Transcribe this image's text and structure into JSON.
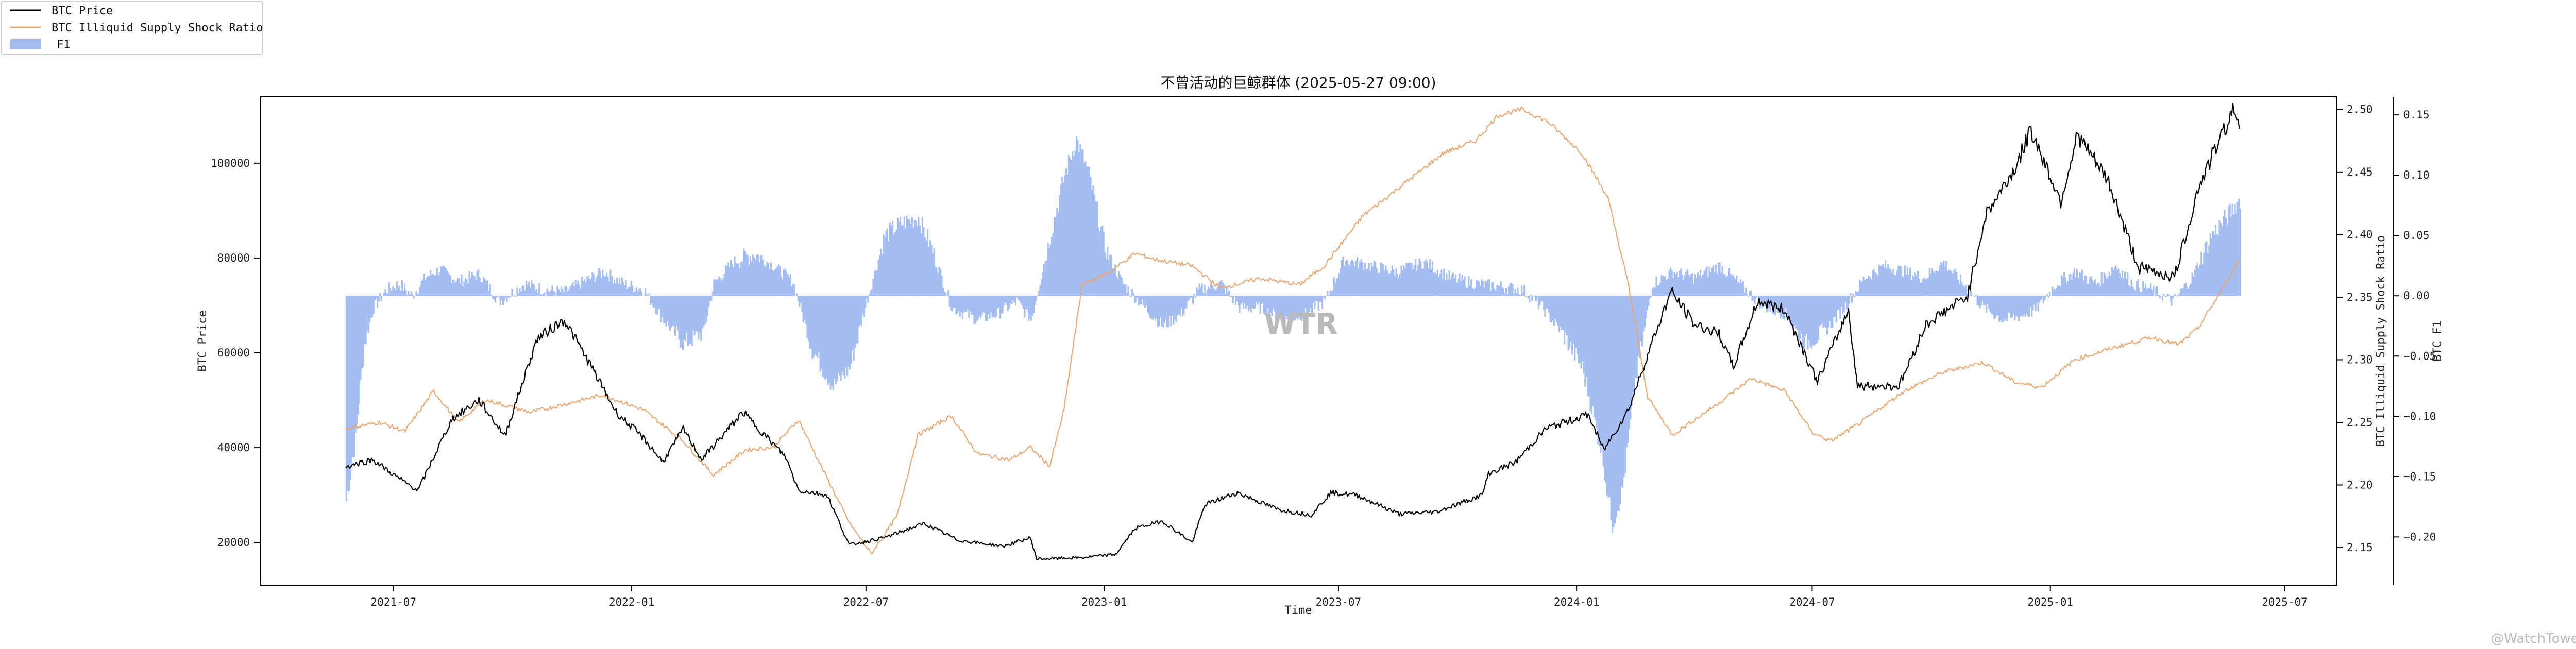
{
  "chart_data": {
    "type": "line",
    "title": "不曾活动的巨鲸群体 (2025-05-27 09:00)",
    "xlabel": "Time",
    "y_labels": {
      "left": "BTC Price",
      "right1": "BTC Illiquid Supply Shock Ratio",
      "right2": "BTC F1"
    },
    "x_range": [
      "2021-03-20",
      "2025-08-10"
    ],
    "x_ticks": [
      "2021-07",
      "2022-01",
      "2022-07",
      "2023-01",
      "2023-07",
      "2024-01",
      "2024-07",
      "2025-01",
      "2025-07"
    ],
    "axes": {
      "price": {
        "range": [
          11000,
          114000
        ],
        "ticks": [
          20000,
          40000,
          60000,
          80000,
          100000
        ]
      },
      "ratio": {
        "range": [
          2.12,
          2.51
        ],
        "ticks": [
          "2.15",
          "2.20",
          "2.25",
          "2.30",
          "2.35",
          "2.40",
          "2.45",
          "2.50"
        ]
      },
      "f1": {
        "range": [
          -0.24,
          0.165
        ],
        "ticks": [
          "−0.20",
          "−0.15",
          "−0.10",
          "−0.05",
          "0.00",
          "0.05",
          "0.10",
          "0.15"
        ]
      }
    },
    "legend": {
      "position": "top-left"
    },
    "grid": false,
    "series": [
      {
        "name": "BTC Price",
        "axis": "price",
        "kind": "line",
        "color": "#000000",
        "points": [
          [
            "2021-05-25",
            36000
          ],
          [
            "2021-06-15",
            37500
          ],
          [
            "2021-07-05",
            33500
          ],
          [
            "2021-07-20",
            31000
          ],
          [
            "2021-08-15",
            46000
          ],
          [
            "2021-09-05",
            50000
          ],
          [
            "2021-09-25",
            42500
          ],
          [
            "2021-10-20",
            63000
          ],
          [
            "2021-11-10",
            67000
          ],
          [
            "2021-12-01",
            57000
          ],
          [
            "2021-12-20",
            47500
          ],
          [
            "2022-01-10",
            42000
          ],
          [
            "2022-01-25",
            37000
          ],
          [
            "2022-02-10",
            44000
          ],
          [
            "2022-02-24",
            37500
          ],
          [
            "2022-03-28",
            47500
          ],
          [
            "2022-04-30",
            38000
          ],
          [
            "2022-05-10",
            31000
          ],
          [
            "2022-06-01",
            30000
          ],
          [
            "2022-06-18",
            19500
          ],
          [
            "2022-07-15",
            21000
          ],
          [
            "2022-08-15",
            24000
          ],
          [
            "2022-09-10",
            20500
          ],
          [
            "2022-10-15",
            19200
          ],
          [
            "2022-11-05",
            21000
          ],
          [
            "2022-11-10",
            16500
          ],
          [
            "2022-12-15",
            16800
          ],
          [
            "2023-01-10",
            17500
          ],
          [
            "2023-01-25",
            23000
          ],
          [
            "2023-02-15",
            24500
          ],
          [
            "2023-03-10",
            20000
          ],
          [
            "2023-03-20",
            28000
          ],
          [
            "2023-04-14",
            30500
          ],
          [
            "2023-05-15",
            27000
          ],
          [
            "2023-06-10",
            25800
          ],
          [
            "2023-06-25",
            30500
          ],
          [
            "2023-07-15",
            30000
          ],
          [
            "2023-08-17",
            26000
          ],
          [
            "2023-09-15",
            26500
          ],
          [
            "2023-10-20",
            30000
          ],
          [
            "2023-10-25",
            34500
          ],
          [
            "2023-11-15",
            37000
          ],
          [
            "2023-12-08",
            44000
          ],
          [
            "2024-01-10",
            47000
          ],
          [
            "2024-01-22",
            39500
          ],
          [
            "2024-02-10",
            48000
          ],
          [
            "2024-02-28",
            62000
          ],
          [
            "2024-03-14",
            73000
          ],
          [
            "2024-04-01",
            66000
          ],
          [
            "2024-04-20",
            64000
          ],
          [
            "2024-05-01",
            57000
          ],
          [
            "2024-05-20",
            71000
          ],
          [
            "2024-06-10",
            69000
          ],
          [
            "2024-07-05",
            54000
          ],
          [
            "2024-07-29",
            69000
          ],
          [
            "2024-08-05",
            53000
          ],
          [
            "2024-09-06",
            53000
          ],
          [
            "2024-09-27",
            66000
          ],
          [
            "2024-10-29",
            72000
          ],
          [
            "2024-11-12",
            89000
          ],
          [
            "2024-12-05",
            99000
          ],
          [
            "2024-12-17",
            107000
          ],
          [
            "2025-01-09",
            92000
          ],
          [
            "2025-01-22",
            106000
          ],
          [
            "2025-02-15",
            96000
          ],
          [
            "2025-03-01",
            85000
          ],
          [
            "2025-03-10",
            78000
          ],
          [
            "2025-04-07",
            76000
          ],
          [
            "2025-04-25",
            94500
          ],
          [
            "2025-05-10",
            104000
          ],
          [
            "2025-05-22",
            111000
          ],
          [
            "2025-05-27",
            109000
          ]
        ]
      },
      {
        "name": "BTC Illiquid Supply Shock Ratio",
        "axis": "ratio",
        "kind": "line",
        "color": "#e8a56d",
        "points": [
          [
            "2021-05-25",
            2.245
          ],
          [
            "2021-06-20",
            2.25
          ],
          [
            "2021-07-10",
            2.243
          ],
          [
            "2021-08-01",
            2.275
          ],
          [
            "2021-08-20",
            2.25
          ],
          [
            "2021-09-10",
            2.268
          ],
          [
            "2021-10-15",
            2.258
          ],
          [
            "2021-11-20",
            2.267
          ],
          [
            "2021-12-10",
            2.272
          ],
          [
            "2022-01-10",
            2.26
          ],
          [
            "2022-02-10",
            2.235
          ],
          [
            "2022-03-05",
            2.208
          ],
          [
            "2022-03-30",
            2.228
          ],
          [
            "2022-04-20",
            2.23
          ],
          [
            "2022-05-10",
            2.252
          ],
          [
            "2022-05-25",
            2.22
          ],
          [
            "2022-06-18",
            2.17
          ],
          [
            "2022-07-05",
            2.145
          ],
          [
            "2022-07-25",
            2.175
          ],
          [
            "2022-08-10",
            2.24
          ],
          [
            "2022-09-05",
            2.255
          ],
          [
            "2022-09-25",
            2.225
          ],
          [
            "2022-10-20",
            2.22
          ],
          [
            "2022-11-05",
            2.23
          ],
          [
            "2022-11-20",
            2.215
          ],
          [
            "2022-12-01",
            2.26
          ],
          [
            "2022-12-15",
            2.36
          ],
          [
            "2023-01-05",
            2.37
          ],
          [
            "2023-01-25",
            2.385
          ],
          [
            "2023-02-10",
            2.38
          ],
          [
            "2023-03-10",
            2.375
          ],
          [
            "2023-04-01",
            2.357
          ],
          [
            "2023-05-01",
            2.365
          ],
          [
            "2023-06-01",
            2.36
          ],
          [
            "2023-06-20",
            2.375
          ],
          [
            "2023-07-20",
            2.415
          ],
          [
            "2023-08-20",
            2.44
          ],
          [
            "2023-09-20",
            2.465
          ],
          [
            "2023-10-15",
            2.475
          ],
          [
            "2023-11-01",
            2.495
          ],
          [
            "2023-11-20",
            2.5
          ],
          [
            "2023-12-10",
            2.49
          ],
          [
            "2024-01-05",
            2.465
          ],
          [
            "2024-01-25",
            2.43
          ],
          [
            "2024-02-10",
            2.36
          ],
          [
            "2024-02-25",
            2.27
          ],
          [
            "2024-03-15",
            2.24
          ],
          [
            "2024-04-15",
            2.262
          ],
          [
            "2024-05-15",
            2.285
          ],
          [
            "2024-06-10",
            2.275
          ],
          [
            "2024-07-01",
            2.242
          ],
          [
            "2024-07-15",
            2.235
          ],
          [
            "2024-08-05",
            2.248
          ],
          [
            "2024-09-10",
            2.275
          ],
          [
            "2024-10-10",
            2.29
          ],
          [
            "2024-11-10",
            2.298
          ],
          [
            "2024-12-05",
            2.282
          ],
          [
            "2024-12-25",
            2.278
          ],
          [
            "2025-01-20",
            2.3
          ],
          [
            "2025-02-20",
            2.31
          ],
          [
            "2025-03-20",
            2.318
          ],
          [
            "2025-04-10",
            2.312
          ],
          [
            "2025-04-25",
            2.325
          ],
          [
            "2025-05-10",
            2.35
          ],
          [
            "2025-05-27",
            2.38
          ]
        ]
      },
      {
        "name": "F1",
        "axis": "f1",
        "kind": "bar",
        "color": "#a4bdf2",
        "points": [
          [
            "2021-05-25",
            -0.17
          ],
          [
            "2021-06-01",
            -0.12
          ],
          [
            "2021-06-08",
            -0.04
          ],
          [
            "2021-06-15",
            -0.01
          ],
          [
            "2021-06-25",
            0.005
          ],
          [
            "2021-07-05",
            0.01
          ],
          [
            "2021-07-15",
            0.0
          ],
          [
            "2021-07-25",
            0.015
          ],
          [
            "2021-08-05",
            0.022
          ],
          [
            "2021-08-20",
            0.012
          ],
          [
            "2021-09-05",
            0.018
          ],
          [
            "2021-09-20",
            -0.005
          ],
          [
            "2021-10-10",
            0.01
          ],
          [
            "2021-10-25",
            0.005
          ],
          [
            "2021-11-10",
            0.003
          ],
          [
            "2021-11-25",
            0.012
          ],
          [
            "2021-12-10",
            0.02
          ],
          [
            "2021-12-25",
            0.01
          ],
          [
            "2022-01-10",
            0.005
          ],
          [
            "2022-01-25",
            -0.02
          ],
          [
            "2022-02-10",
            -0.04
          ],
          [
            "2022-02-25",
            -0.03
          ],
          [
            "2022-03-05",
            0.01
          ],
          [
            "2022-03-20",
            0.028
          ],
          [
            "2022-04-05",
            0.035
          ],
          [
            "2022-04-20",
            0.025
          ],
          [
            "2022-05-05",
            0.012
          ],
          [
            "2022-05-20",
            -0.045
          ],
          [
            "2022-06-05",
            -0.075
          ],
          [
            "2022-06-18",
            -0.06
          ],
          [
            "2022-07-01",
            -0.005
          ],
          [
            "2022-07-15",
            0.05
          ],
          [
            "2022-07-28",
            0.06
          ],
          [
            "2022-08-10",
            0.065
          ],
          [
            "2022-08-20",
            0.04
          ],
          [
            "2022-09-05",
            -0.01
          ],
          [
            "2022-09-25",
            -0.02
          ],
          [
            "2022-10-10",
            -0.015
          ],
          [
            "2022-10-25",
            -0.005
          ],
          [
            "2022-11-05",
            -0.02
          ],
          [
            "2022-11-20",
            0.05
          ],
          [
            "2022-12-01",
            0.1
          ],
          [
            "2022-12-10",
            0.13
          ],
          [
            "2022-12-20",
            0.1
          ],
          [
            "2023-01-01",
            0.04
          ],
          [
            "2023-01-15",
            0.01
          ],
          [
            "2023-02-01",
            -0.01
          ],
          [
            "2023-02-15",
            -0.025
          ],
          [
            "2023-03-01",
            -0.015
          ],
          [
            "2023-03-15",
            0.005
          ],
          [
            "2023-04-01",
            0.01
          ],
          [
            "2023-04-15",
            -0.01
          ],
          [
            "2023-05-01",
            -0.01
          ],
          [
            "2023-05-20",
            -0.02
          ],
          [
            "2023-06-05",
            -0.015
          ],
          [
            "2023-06-20",
            -0.005
          ],
          [
            "2023-07-05",
            0.03
          ],
          [
            "2023-07-25",
            0.025
          ],
          [
            "2023-08-15",
            0.02
          ],
          [
            "2023-09-05",
            0.028
          ],
          [
            "2023-09-25",
            0.015
          ],
          [
            "2023-10-15",
            0.01
          ],
          [
            "2023-11-01",
            0.008
          ],
          [
            "2023-11-20",
            0.005
          ],
          [
            "2023-12-05",
            -0.01
          ],
          [
            "2023-12-20",
            -0.03
          ],
          [
            "2024-01-05",
            -0.06
          ],
          [
            "2024-01-20",
            -0.13
          ],
          [
            "2024-01-28",
            -0.19
          ],
          [
            "2024-02-05",
            -0.16
          ],
          [
            "2024-02-15",
            -0.07
          ],
          [
            "2024-02-28",
            0.01
          ],
          [
            "2024-03-15",
            0.02
          ],
          [
            "2024-04-01",
            0.015
          ],
          [
            "2024-04-20",
            0.025
          ],
          [
            "2024-05-10",
            0.005
          ],
          [
            "2024-05-25",
            -0.01
          ],
          [
            "2024-06-10",
            -0.015
          ],
          [
            "2024-06-25",
            -0.04
          ],
          [
            "2024-07-10",
            -0.03
          ],
          [
            "2024-07-25",
            -0.01
          ],
          [
            "2024-08-10",
            0.015
          ],
          [
            "2024-08-25",
            0.025
          ],
          [
            "2024-09-10",
            0.02
          ],
          [
            "2024-09-25",
            0.015
          ],
          [
            "2024-10-10",
            0.028
          ],
          [
            "2024-10-25",
            0.01
          ],
          [
            "2024-11-10",
            -0.01
          ],
          [
            "2024-11-25",
            -0.02
          ],
          [
            "2024-12-05",
            -0.018
          ],
          [
            "2024-12-20",
            -0.012
          ],
          [
            "2025-01-05",
            0.01
          ],
          [
            "2025-01-20",
            0.02
          ],
          [
            "2025-02-05",
            0.01
          ],
          [
            "2025-02-20",
            0.025
          ],
          [
            "2025-03-05",
            0.01
          ],
          [
            "2025-03-20",
            0.005
          ],
          [
            "2025-04-05",
            -0.005
          ],
          [
            "2025-04-20",
            0.015
          ],
          [
            "2025-05-05",
            0.05
          ],
          [
            "2025-05-20",
            0.07
          ],
          [
            "2025-05-27",
            0.08
          ]
        ]
      }
    ]
  },
  "watermark": "WTR",
  "corner_watermark": "@WatchTowers"
}
